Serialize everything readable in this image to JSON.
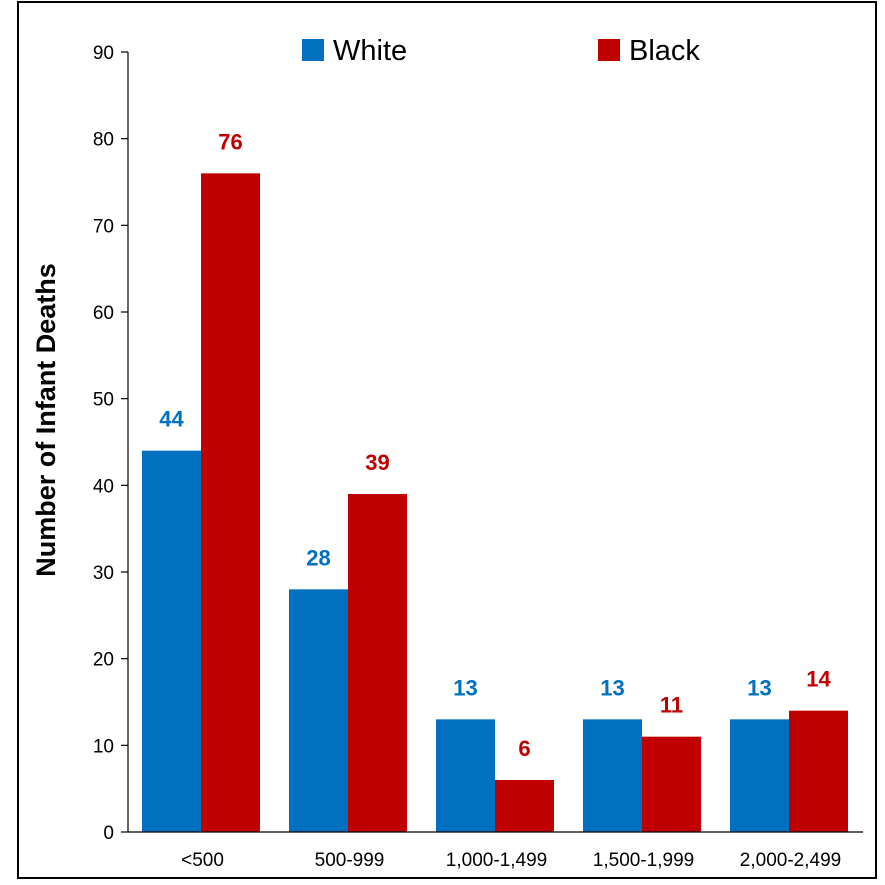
{
  "chart_data": {
    "type": "bar",
    "title": "",
    "xlabel": "",
    "ylabel": "Number of Infant Deaths",
    "ylim": [
      0,
      90
    ],
    "yticks": [
      0,
      10,
      20,
      30,
      40,
      50,
      60,
      70,
      80,
      90
    ],
    "grid": false,
    "legend_position": "top",
    "categories": [
      "<500",
      "500-999",
      "1,000-1,499",
      "1,500-1,999",
      "2,000-2,499"
    ],
    "series": [
      {
        "name": "White",
        "color": "#0070C0",
        "label_color": "#0070C0",
        "values": [
          44,
          28,
          13,
          13,
          13
        ]
      },
      {
        "name": "Black",
        "color": "#C00000",
        "label_color": "#C00000",
        "values": [
          76,
          39,
          6,
          11,
          14
        ]
      }
    ]
  }
}
